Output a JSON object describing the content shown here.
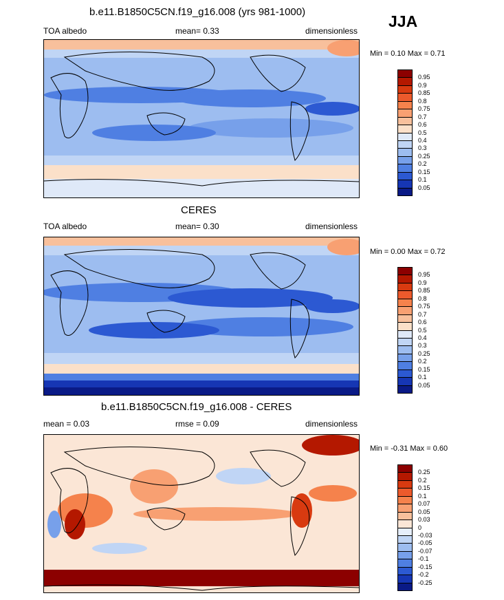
{
  "season": "JJA",
  "chart_data": [
    {
      "type": "heatmap",
      "title": "b.e11.B1850C5CN.f19_g16.008 (yrs 981-1000)",
      "left_label": "TOA albedo",
      "center_label": "mean=   0.33",
      "right_label": "dimensionless",
      "minmax_label": "Min =   0.10 Max =   0.71",
      "mean": 0.33,
      "min": 0.1,
      "max": 0.71,
      "colorbar_levels": [
        "0.95",
        "0.9",
        "0.85",
        "0.8",
        "0.75",
        "0.7",
        "0.6",
        "0.5",
        "0.4",
        "0.3",
        "0.25",
        "0.2",
        "0.15",
        "0.1",
        "0.05"
      ],
      "colorbar_colors": [
        "#8c0000",
        "#b41800",
        "#d83a10",
        "#ec5a2c",
        "#f5824c",
        "#f8a072",
        "#f8c09c",
        "#fbe0c9",
        "#dfe9f8",
        "#c0d5f5",
        "#9dbdf0",
        "#77a0ea",
        "#4f7fe2",
        "#2c59d2",
        "#1636b4",
        "#0a1a86"
      ]
    },
    {
      "type": "heatmap",
      "title": "CERES",
      "left_label": "TOA albedo",
      "center_label": "mean=   0.30",
      "right_label": "dimensionless",
      "minmax_label": "Min =   0.00 Max =   0.72",
      "mean": 0.3,
      "min": 0.0,
      "max": 0.72,
      "colorbar_levels": [
        "0.95",
        "0.9",
        "0.85",
        "0.8",
        "0.75",
        "0.7",
        "0.6",
        "0.5",
        "0.4",
        "0.3",
        "0.25",
        "0.2",
        "0.15",
        "0.1",
        "0.05"
      ],
      "colorbar_colors": [
        "#8c0000",
        "#b41800",
        "#d83a10",
        "#ec5a2c",
        "#f5824c",
        "#f8a072",
        "#f8c09c",
        "#fbe0c9",
        "#dfe9f8",
        "#c0d5f5",
        "#9dbdf0",
        "#77a0ea",
        "#4f7fe2",
        "#2c59d2",
        "#1636b4",
        "#0a1a86"
      ]
    },
    {
      "type": "heatmap",
      "title": "b.e11.B1850C5CN.f19_g16.008 - CERES",
      "left_label": "mean =   0.03",
      "center_label": "rmse =   0.09",
      "right_label": "dimensionless",
      "minmax_label": "Min =  -0.31 Max =   0.60",
      "mean": 0.03,
      "rmse": 0.09,
      "min": -0.31,
      "max": 0.6,
      "colorbar_levels": [
        "0.25",
        "0.2",
        "0.15",
        "0.1",
        "0.07",
        "0.05",
        "0.03",
        "0",
        "-0.03",
        "-0.05",
        "-0.07",
        "-0.1",
        "-0.15",
        "-0.2",
        "-0.25"
      ],
      "colorbar_colors": [
        "#8c0000",
        "#b41800",
        "#d83a10",
        "#ec5a2c",
        "#f5824c",
        "#f8a072",
        "#f8c09c",
        "#fbe6d6",
        "#e6eefa",
        "#c0d5f5",
        "#9dbdf0",
        "#77a0ea",
        "#4f7fe2",
        "#2c59d2",
        "#1636b4",
        "#0a1a86"
      ]
    }
  ]
}
